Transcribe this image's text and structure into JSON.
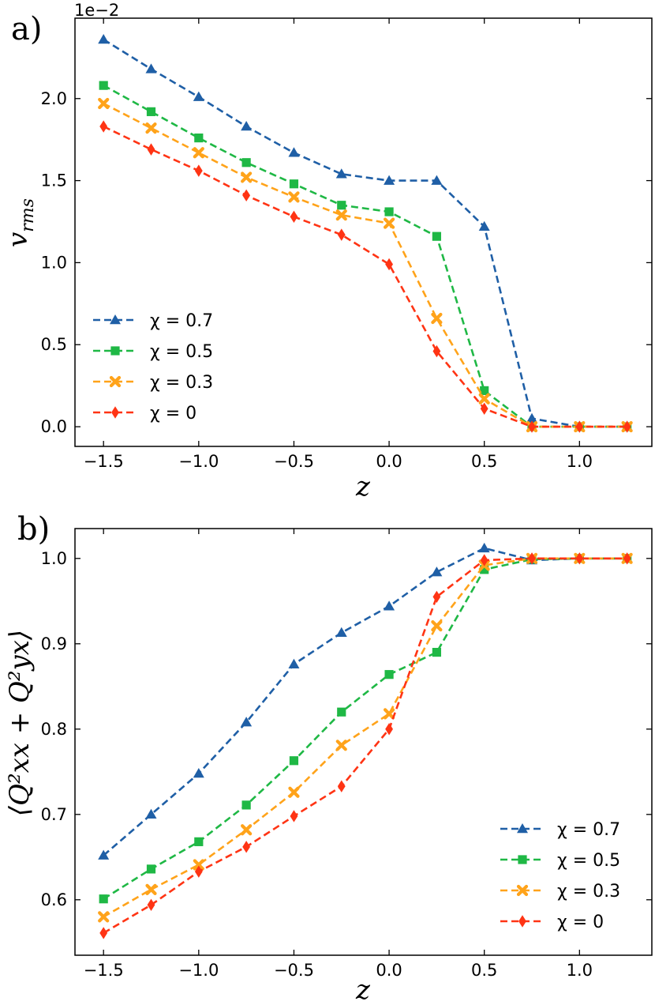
{
  "chart_data": [
    {
      "type": "line",
      "panel_label": "a)",
      "xlabel": "z",
      "ylabel": "v",
      "ylabel_sub": "rms",
      "y_offset_label": "1e−2",
      "xlim": [
        -1.65,
        1.38
      ],
      "ylim": [
        -0.12,
        2.49
      ],
      "xticks": [
        -1.5,
        -1.0,
        -0.5,
        0.0,
        0.5,
        1.0
      ],
      "xtick_labels": [
        "−1.5",
        "−1.0",
        "−0.5",
        "0.0",
        "0.5",
        "1.0"
      ],
      "yticks": [
        0.0,
        0.5,
        1.0,
        1.5,
        2.0
      ],
      "ytick_labels": [
        "0.0",
        "0.5",
        "1.0",
        "1.5",
        "2.0"
      ],
      "legend_position": "lower-left",
      "x": [
        -1.5,
        -1.25,
        -1.0,
        -0.75,
        -0.5,
        -0.25,
        0.0,
        0.25,
        0.5,
        0.75,
        1.0,
        1.25
      ],
      "series": [
        {
          "name": "χ = 0.7",
          "color": "#1f5fa6",
          "marker": "triangle",
          "values": [
            2.36,
            2.18,
            2.01,
            1.83,
            1.67,
            1.54,
            1.5,
            1.5,
            1.22,
            0.05,
            0.0,
            0.0
          ]
        },
        {
          "name": "χ = 0.5",
          "color": "#1fb845",
          "marker": "square",
          "values": [
            2.08,
            1.92,
            1.76,
            1.61,
            1.48,
            1.35,
            1.31,
            1.16,
            0.22,
            0.0,
            0.0,
            0.0
          ]
        },
        {
          "name": "χ = 0.3",
          "color": "#ffa31a",
          "marker": "x",
          "values": [
            1.97,
            1.82,
            1.67,
            1.52,
            1.4,
            1.29,
            1.24,
            0.66,
            0.17,
            0.0,
            0.0,
            0.0
          ]
        },
        {
          "name": "χ = 0",
          "color": "#ff3414",
          "marker": "diamond",
          "values": [
            1.83,
            1.69,
            1.56,
            1.41,
            1.28,
            1.17,
            0.99,
            0.46,
            0.11,
            0.0,
            0.0,
            0.0
          ]
        }
      ]
    },
    {
      "type": "line",
      "panel_label": "b)",
      "xlabel": "z",
      "ylabel": "⟨Q²xx + Q²yx⟩",
      "xlim": [
        -1.65,
        1.38
      ],
      "ylim": [
        0.535,
        1.035
      ],
      "xticks": [
        -1.5,
        -1.0,
        -0.5,
        0.0,
        0.5,
        1.0
      ],
      "xtick_labels": [
        "−1.5",
        "−1.0",
        "−0.5",
        "0.0",
        "0.5",
        "1.0"
      ],
      "yticks": [
        0.6,
        0.7,
        0.8,
        0.9,
        1.0
      ],
      "ytick_labels": [
        "0.6",
        "0.7",
        "0.8",
        "0.9",
        "1.0"
      ],
      "legend_position": "lower-right",
      "x": [
        -1.5,
        -1.25,
        -1.0,
        -0.75,
        -0.5,
        -0.25,
        0.0,
        0.25,
        0.5,
        0.75,
        1.0,
        1.25
      ],
      "series": [
        {
          "name": "χ = 0.7",
          "color": "#1f5fa6",
          "marker": "triangle",
          "values": [
            0.652,
            0.7,
            0.748,
            0.808,
            0.876,
            0.913,
            0.944,
            0.984,
            1.012,
            0.998,
            1.0,
            1.0
          ]
        },
        {
          "name": "χ = 0.5",
          "color": "#1fb845",
          "marker": "square",
          "values": [
            0.601,
            0.636,
            0.668,
            0.711,
            0.763,
            0.82,
            0.864,
            0.89,
            0.987,
            0.999,
            1.0,
            1.0
          ]
        },
        {
          "name": "χ = 0.3",
          "color": "#ffa31a",
          "marker": "x",
          "values": [
            0.58,
            0.612,
            0.641,
            0.682,
            0.726,
            0.781,
            0.818,
            0.921,
            0.992,
            1.0,
            1.0,
            1.0
          ]
        },
        {
          "name": "χ = 0",
          "color": "#ff3414",
          "marker": "diamond",
          "values": [
            0.561,
            0.594,
            0.633,
            0.662,
            0.698,
            0.733,
            0.8,
            0.955,
            0.998,
            1.0,
            1.0,
            1.0
          ]
        }
      ]
    }
  ]
}
